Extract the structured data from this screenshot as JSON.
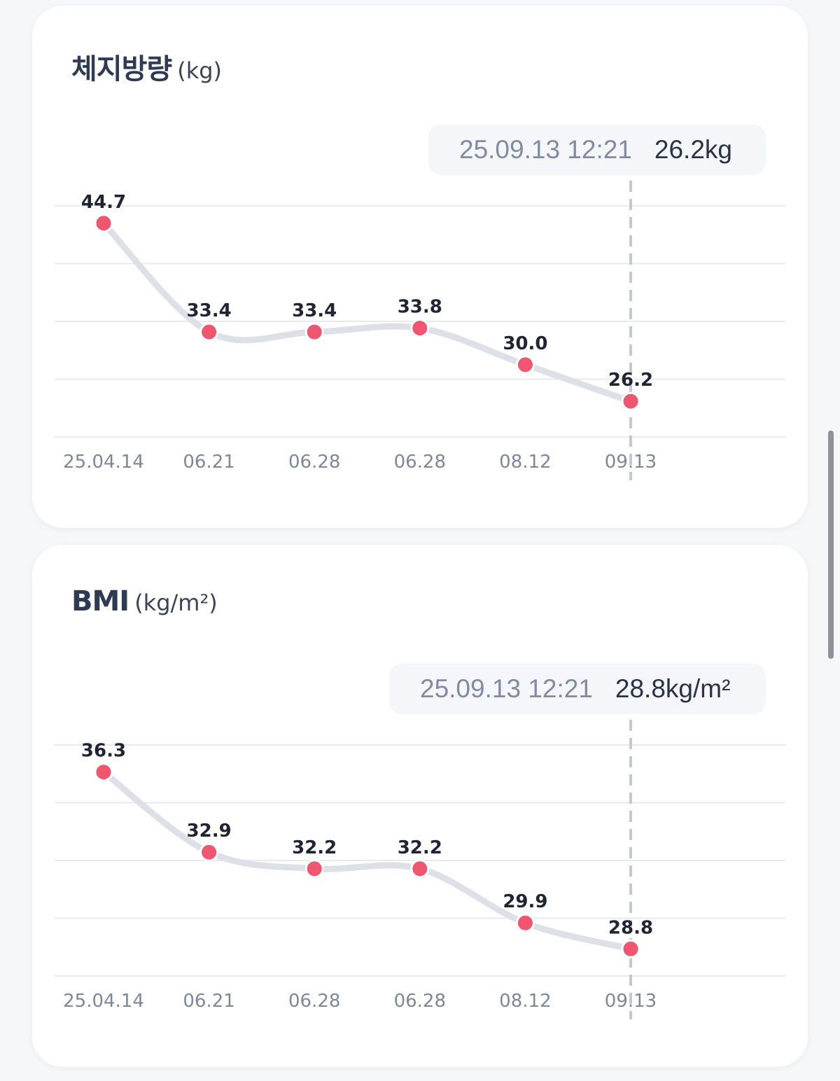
{
  "cards": [
    {
      "title": "체지방량",
      "unit": "(kg)",
      "tooltip": {
        "date": "25.09.13 12:21",
        "value": "26.2kg"
      }
    },
    {
      "title": "BMI",
      "unit": "(kg/m²)",
      "tooltip": {
        "date": "25.09.13 12:21",
        "value": "28.8kg/m²"
      }
    }
  ],
  "colors": {
    "point": "#f0566f",
    "line": "#dde0e6",
    "grid": "#e8eaee",
    "axis_label": "#7d8898",
    "value_label": "#1f2533",
    "guide": "#c4c8d0"
  },
  "chart_data": [
    {
      "type": "line",
      "categories": [
        "25.04.14",
        "06.21",
        "06.28",
        "06.28",
        "08.12",
        "09.13"
      ],
      "values": [
        44.7,
        33.4,
        33.4,
        33.8,
        30.0,
        26.2
      ],
      "labels": [
        "44.7",
        "33.4",
        "33.4",
        "33.8",
        "30.0",
        "26.2"
      ],
      "title": "체지방량",
      "ylabel": "(kg)",
      "ylim": [
        22.5,
        46.5
      ],
      "grid": true,
      "highlight_index": 5
    },
    {
      "type": "line",
      "categories": [
        "25.04.14",
        "06.21",
        "06.28",
        "06.28",
        "08.12",
        "09.13"
      ],
      "values": [
        36.3,
        32.9,
        32.2,
        32.2,
        29.9,
        28.8
      ],
      "labels": [
        "36.3",
        "32.9",
        "32.2",
        "32.2",
        "29.9",
        "28.8"
      ],
      "title": "BMI",
      "ylabel": "(kg/m²)",
      "ylim": [
        27.65,
        37.45
      ],
      "grid": true,
      "highlight_index": 5
    }
  ]
}
